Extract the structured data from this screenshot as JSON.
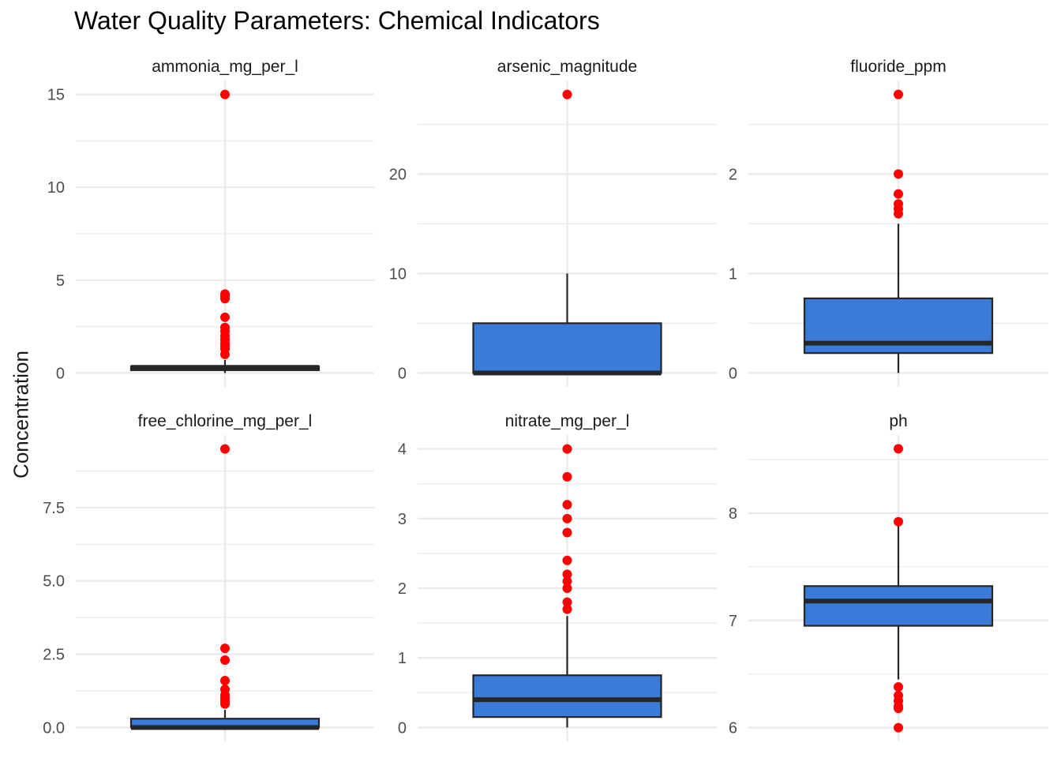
{
  "chart_data": {
    "type": "boxplot",
    "title": "Water Quality Parameters: Chemical Indicators",
    "ylabel": "Concentration",
    "xlabel": "",
    "grid": true,
    "legend": "none",
    "colors": {
      "box_fill": "#3a7ad9",
      "box_line": "#262626",
      "outlier": "#ff0000",
      "grid": "#ebebeb"
    },
    "facets": [
      {
        "name": "ammonia_mg_per_l",
        "ylim": [
          -0.75,
          15.75
        ],
        "major_ticks": [
          0,
          5,
          10,
          15
        ],
        "tick_labels": [
          "0",
          "5",
          "10",
          "15"
        ],
        "minor_ticks": [
          2.5,
          7.5,
          12.5
        ],
        "box": {
          "q1": 0.15,
          "median": 0.3,
          "q3": 0.35,
          "whisker_low": 0.0,
          "whisker_high": 0.7
        },
        "outliers": [
          15,
          4.25,
          4.15,
          4.0,
          3.0,
          2.45,
          2.25,
          2.0,
          1.8,
          1.6,
          1.45,
          1.3,
          1.0
        ]
      },
      {
        "name": "arsenic_magnitude",
        "ylim": [
          -1.4,
          29.4
        ],
        "major_ticks": [
          0,
          10,
          20
        ],
        "tick_labels": [
          "0",
          "10",
          "20"
        ],
        "minor_ticks": [
          5,
          15,
          25
        ],
        "box": {
          "q1": 0.0,
          "median": 0.0,
          "q3": 5.0,
          "whisker_low": 0.0,
          "whisker_high": 10.0
        },
        "outliers": [
          28
        ]
      },
      {
        "name": "fluoride_ppm",
        "ylim": [
          -0.14,
          2.94
        ],
        "major_ticks": [
          0,
          1,
          2
        ],
        "tick_labels": [
          "0",
          "1",
          "2"
        ],
        "minor_ticks": [
          0.5,
          1.5,
          2.5
        ],
        "box": {
          "q1": 0.2,
          "median": 0.3,
          "q3": 0.75,
          "whisker_low": 0.0,
          "whisker_high": 1.5
        },
        "outliers": [
          2.8,
          2.0,
          1.8,
          1.7,
          1.65,
          1.6
        ]
      },
      {
        "name": "free_chlorine_mg_per_l",
        "ylim": [
          -0.475,
          9.975
        ],
        "major_ticks": [
          0,
          2.5,
          5,
          7.5
        ],
        "tick_labels": [
          "0.0",
          "2.5",
          "5.0",
          "7.5"
        ],
        "minor_ticks": [
          1.25,
          3.75,
          6.25,
          8.75
        ],
        "box": {
          "q1": 0.0,
          "median": 0.0,
          "q3": 0.3,
          "whisker_low": 0.0,
          "whisker_high": 0.6
        },
        "outliers": [
          9.5,
          2.7,
          2.3,
          1.6,
          1.3,
          1.1,
          1.0,
          0.9,
          0.8
        ]
      },
      {
        "name": "nitrate_mg_per_l",
        "ylim": [
          -0.2,
          4.2
        ],
        "major_ticks": [
          0,
          1,
          2,
          3,
          4
        ],
        "tick_labels": [
          "0",
          "1",
          "2",
          "3",
          "4"
        ],
        "minor_ticks": [
          0.5,
          1.5,
          2.5,
          3.5
        ],
        "box": {
          "q1": 0.15,
          "median": 0.4,
          "q3": 0.75,
          "whisker_low": 0.0,
          "whisker_high": 1.6
        },
        "outliers": [
          4.0,
          3.6,
          3.2,
          3.0,
          2.8,
          2.4,
          2.2,
          2.1,
          2.0,
          1.8,
          1.7
        ]
      },
      {
        "name": "ph",
        "ylim": [
          5.872,
          8.728
        ],
        "major_ticks": [
          6,
          7,
          8
        ],
        "tick_labels": [
          "6",
          "7",
          "8"
        ],
        "minor_ticks": [
          6.5,
          7.5,
          8.5
        ],
        "box": {
          "q1": 6.95,
          "median": 7.18,
          "q3": 7.32,
          "whisker_low": 6.45,
          "whisker_high": 7.9
        },
        "outliers": [
          8.6,
          7.92,
          6.38,
          6.3,
          6.25,
          6.2,
          6.18,
          6.0
        ]
      }
    ]
  }
}
